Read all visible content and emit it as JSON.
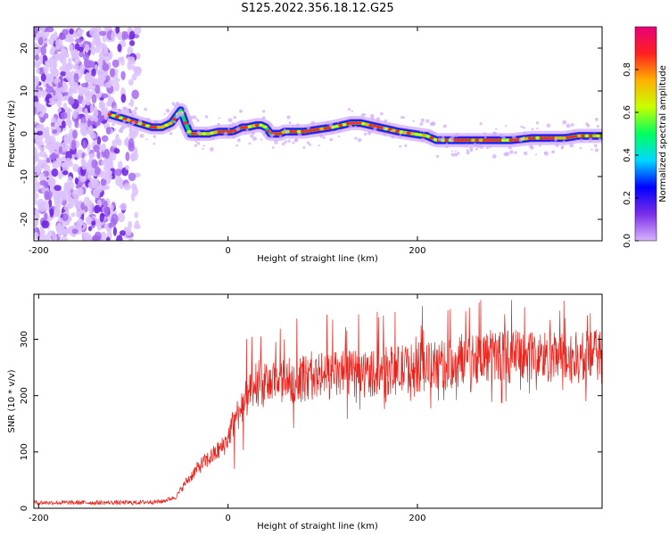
{
  "title": "S125.2022.356.18.12.G25",
  "chart_data": [
    {
      "type": "heatmap",
      "xlabel": "Height of straight line (km)",
      "ylabel": "Frequency (Hz)",
      "xlim": [
        -205,
        395
      ],
      "ylim": [
        -25,
        25
      ],
      "x_ticks": [
        -200,
        0,
        200
      ],
      "x_tick_labels": [
        "-200",
        "0",
        "200"
      ],
      "y_ticks": [
        -20,
        -10,
        0,
        10,
        20
      ],
      "y_tick_labels": [
        "-20",
        "-10",
        "0",
        "10",
        "20"
      ],
      "colorbar": {
        "label": "Normalized spectral amplitude",
        "range": [
          0,
          1
        ],
        "ticks": [
          0,
          0.2,
          0.4,
          0.6,
          0.8
        ],
        "tick_labels": [
          "0.0",
          "0.2",
          "0.4",
          "0.6",
          "0.8"
        ],
        "colormap": [
          "#d9b3ff",
          "#7b2ee8",
          "#0000ff",
          "#00d8ff",
          "#00ff60",
          "#c8ff00",
          "#ffb000",
          "#ff2020",
          "#e8007a"
        ]
      },
      "ridge": {
        "x": [
          -125,
          -110,
          -95,
          -80,
          -70,
          -60,
          -55,
          -50,
          -45,
          -40,
          -35,
          -30,
          -20,
          -10,
          0,
          5,
          10,
          15,
          20,
          30,
          35,
          40,
          45,
          55,
          60,
          70,
          80,
          95,
          110,
          120,
          130,
          140,
          150,
          160,
          170,
          180,
          195,
          210,
          220,
          235,
          250,
          265,
          280,
          300,
          320,
          340,
          355,
          370,
          395
        ],
        "y": [
          4.5,
          3.5,
          2.5,
          1.5,
          1.5,
          2.5,
          4,
          5.5,
          2.5,
          0,
          0,
          0,
          0,
          0.5,
          0.5,
          0.5,
          1,
          1.5,
          1.5,
          2,
          2,
          1.5,
          0,
          0,
          0.5,
          0.5,
          0.5,
          1,
          1.5,
          2,
          2.5,
          2.5,
          2,
          1.5,
          1,
          0.5,
          0,
          -0.5,
          -1.5,
          -1.5,
          -1.5,
          -1.5,
          -1.5,
          -1.5,
          -1,
          -1,
          -1,
          -0.5,
          -0.5
        ]
      },
      "noise_region_x": [
        -205,
        -95
      ]
    },
    {
      "type": "line",
      "xlabel": "Height of straight line (km)",
      "ylabel": "SNR (10 * v/v)",
      "xlim": [
        -205,
        395
      ],
      "ylim": [
        0,
        380
      ],
      "x_ticks": [
        -200,
        0,
        200
      ],
      "x_tick_labels": [
        "-200",
        "0",
        "200"
      ],
      "y_ticks": [
        0,
        100,
        200,
        300
      ],
      "y_tick_labels": [
        "0",
        "100",
        "200",
        "300"
      ],
      "color": "#e8231c",
      "trend": {
        "x": [
          -205,
          -100,
          -70,
          -55,
          -45,
          -30,
          -15,
          -5,
          0,
          5,
          15,
          25,
          40,
          60,
          100,
          150,
          200,
          240,
          250,
          280,
          320,
          360,
          395
        ],
        "y": [
          10,
          10,
          12,
          20,
          45,
          75,
          95,
          110,
          125,
          150,
          185,
          205,
          220,
          225,
          235,
          240,
          250,
          255,
          270,
          270,
          270,
          265,
          270
        ]
      }
    }
  ]
}
